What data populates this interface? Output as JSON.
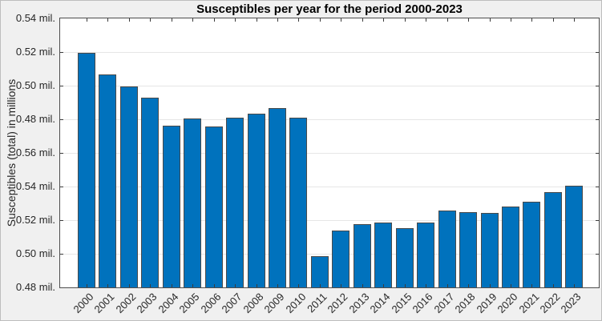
{
  "chart_data": {
    "type": "bar",
    "title": "Susceptibles per year for the period 2000-2023",
    "xlabel": "",
    "ylabel": "Susceptibles (total) in millions",
    "unit": "mil.",
    "legend": "none",
    "grid": "horizontal-only",
    "bar_color": "#0072BD",
    "bar_edge_color": "#4a4a4a",
    "figure_background": "#f0f0f0",
    "plot_background": "#ffffff",
    "categories": [
      "2000",
      "2001",
      "2002",
      "2003",
      "2004",
      "2005",
      "2006",
      "2007",
      "2008",
      "2009",
      "2010",
      "2011",
      "2012",
      "2013",
      "2014",
      "2015",
      "2016",
      "2017",
      "2018",
      "2019",
      "2020",
      "2021",
      "2022",
      "2023"
    ],
    "values_mil": [
      0.5195,
      0.5066,
      0.4996,
      0.493,
      0.4763,
      0.4803,
      0.4757,
      0.4811,
      0.4832,
      0.4868,
      0.4811,
      0.4988,
      0.5138,
      0.5174,
      0.5184,
      0.5151,
      0.5188,
      0.5255,
      0.5247,
      0.5244,
      0.528,
      0.531,
      0.5368,
      0.5406
    ],
    "scale_segment": [
      "upper",
      "upper",
      "upper",
      "upper",
      "upper",
      "upper",
      "upper",
      "upper",
      "upper",
      "upper",
      "upper",
      "lower",
      "lower",
      "lower",
      "lower",
      "lower",
      "lower",
      "lower",
      "lower",
      "lower",
      "lower",
      "lower",
      "lower",
      "lower"
    ],
    "y_axis": {
      "broken_axis": true,
      "upper_segment_range_mil": [
        0.48,
        0.54
      ],
      "lower_segment_range_mil": [
        0.48,
        0.56
      ],
      "tick_step_mil": 0.02,
      "tick_labels_top_to_bottom": [
        "0.54 mil.",
        "0.52 mil.",
        "0.50 mil.",
        "0.48 mil.",
        "0.56 mil.",
        "0.54 mil.",
        "0.52 mil.",
        "0.50 mil.",
        "0.48 mil."
      ]
    }
  }
}
